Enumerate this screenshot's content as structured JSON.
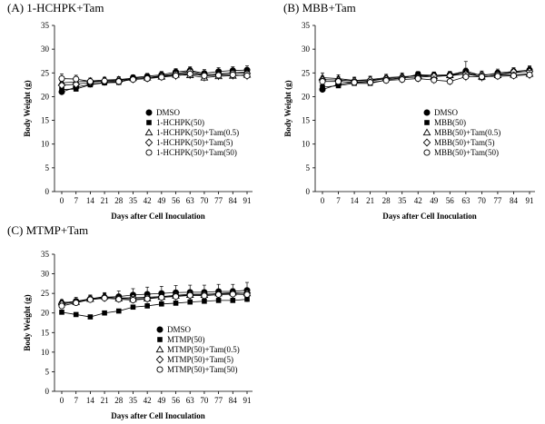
{
  "chart_data": [
    {
      "type": "line",
      "title": "(A) 1-HCHPK+Tam",
      "xlabel": "Days after Cell Inoculation",
      "ylabel": "Body Weight (g)",
      "ylim": [
        0,
        35
      ],
      "yticks": [
        "0",
        "5",
        "10",
        "15",
        "20",
        "25",
        "30",
        "35"
      ],
      "categories": [
        "0",
        "7",
        "14",
        "21",
        "28",
        "35",
        "42",
        "49",
        "56",
        "63",
        "70",
        "77",
        "84",
        "91"
      ],
      "legend": "bottom-right",
      "series": [
        {
          "name": "DMSO",
          "marker": "circle-filled",
          "values": [
            21.0,
            22.0,
            22.6,
            23.0,
            23.1,
            24.0,
            24.3,
            24.6,
            25.2,
            25.5,
            24.9,
            25.3,
            25.5,
            25.6
          ],
          "err": [
            0.4,
            0.5,
            0.5,
            0.5,
            0.6,
            0.6,
            0.6,
            0.7,
            0.7,
            0.8,
            0.8,
            0.8,
            0.8,
            0.9
          ]
        },
        {
          "name": "1-HCHPK(50)",
          "marker": "square-filled",
          "values": [
            21.5,
            21.6,
            22.5,
            22.9,
            23.0,
            23.8,
            24.0,
            24.3,
            24.8,
            24.9,
            24.5,
            24.8,
            25.0,
            25.2
          ],
          "err": [
            0.4,
            0.5,
            0.5,
            0.5,
            0.6,
            0.6,
            0.6,
            0.7,
            0.7,
            0.8,
            0.8,
            0.8,
            0.8,
            0.9
          ]
        },
        {
          "name": "1-HCHPK(50)+Tam(0.5)",
          "marker": "triangle-open",
          "values": [
            22.9,
            23.1,
            23.3,
            23.5,
            23.6,
            23.9,
            24.0,
            24.2,
            24.6,
            24.5,
            24.0,
            24.3,
            24.4,
            24.6
          ],
          "err": [
            0.6,
            0.6,
            0.6,
            0.6,
            0.6,
            0.7,
            0.7,
            0.7,
            0.8,
            0.8,
            0.8,
            0.8,
            0.8,
            0.8
          ]
        },
        {
          "name": "1-HCHPK(50)+Tam(5)",
          "marker": "diamond-open",
          "values": [
            22.4,
            22.6,
            23.0,
            23.3,
            23.5,
            23.8,
            24.0,
            24.4,
            24.8,
            25.3,
            24.6,
            24.7,
            25.0,
            24.9
          ],
          "err": [
            0.6,
            0.6,
            0.6,
            0.6,
            0.6,
            0.7,
            0.7,
            0.7,
            0.8,
            0.8,
            0.8,
            0.8,
            0.8,
            0.8
          ]
        },
        {
          "name": "1-HCHPK(50)+Tam(50)",
          "marker": "circle-open",
          "values": [
            23.8,
            23.7,
            23.2,
            23.3,
            23.2,
            23.6,
            23.8,
            24.1,
            24.4,
            24.8,
            24.4,
            24.5,
            24.6,
            24.4
          ],
          "err": [
            1.0,
            0.8,
            0.7,
            0.7,
            0.7,
            0.8,
            0.8,
            0.8,
            0.9,
            1.0,
            0.9,
            0.9,
            0.9,
            0.9
          ]
        }
      ]
    },
    {
      "type": "line",
      "title": "(B) MBB+Tam",
      "xlabel": "Days after Cell Inoculation",
      "ylabel": "Body Weight (g)",
      "ylim": [
        0,
        35
      ],
      "yticks": [
        "0",
        "5",
        "10",
        "15",
        "20",
        "25",
        "30",
        "35"
      ],
      "categories": [
        "0",
        "7",
        "14",
        "21",
        "28",
        "35",
        "42",
        "49",
        "56",
        "63",
        "70",
        "77",
        "84",
        "91"
      ],
      "legend": "bottom-right",
      "series": [
        {
          "name": "DMSO",
          "marker": "circle-filled",
          "values": [
            21.5,
            22.6,
            23.0,
            23.3,
            23.8,
            24.0,
            24.6,
            24.5,
            24.6,
            25.4,
            24.4,
            25.0,
            25.3,
            25.6
          ],
          "err": [
            0.5,
            0.5,
            0.5,
            0.5,
            0.6,
            0.6,
            0.6,
            0.7,
            0.7,
            2.0,
            0.8,
            0.8,
            0.8,
            0.9
          ]
        },
        {
          "name": "MBB(50)",
          "marker": "square-filled",
          "values": [
            22.0,
            22.3,
            22.8,
            22.8,
            23.5,
            23.9,
            24.7,
            24.2,
            24.5,
            25.2,
            24.0,
            24.6,
            25.0,
            25.4
          ],
          "err": [
            0.5,
            0.5,
            0.5,
            0.5,
            0.6,
            0.6,
            0.6,
            0.7,
            0.7,
            0.8,
            0.8,
            0.8,
            0.8,
            0.9
          ]
        },
        {
          "name": "MBB(50)+Tam(0.5)",
          "marker": "triangle-open",
          "values": [
            24.0,
            23.8,
            23.4,
            23.6,
            24.0,
            24.2,
            24.4,
            24.3,
            24.5,
            24.8,
            24.2,
            24.5,
            24.6,
            24.8
          ],
          "err": [
            1.0,
            0.8,
            0.7,
            0.7,
            0.7,
            0.8,
            0.8,
            0.8,
            0.8,
            0.9,
            0.8,
            0.8,
            0.8,
            0.9
          ]
        },
        {
          "name": "MBB(50)+Tam(5)",
          "marker": "diamond-open",
          "values": [
            23.6,
            23.5,
            23.3,
            23.5,
            23.8,
            24.0,
            24.1,
            24.3,
            24.4,
            24.8,
            24.6,
            24.7,
            25.2,
            25.3
          ],
          "err": [
            0.7,
            0.7,
            0.7,
            0.7,
            0.7,
            0.8,
            0.8,
            0.8,
            0.8,
            0.9,
            0.8,
            0.8,
            0.8,
            0.9
          ]
        },
        {
          "name": "MBB(50)+Tam(50)",
          "marker": "circle-open",
          "values": [
            23.2,
            23.2,
            23.0,
            23.0,
            23.4,
            23.6,
            23.8,
            23.5,
            23.2,
            24.2,
            24.2,
            24.3,
            24.4,
            24.6
          ],
          "err": [
            0.7,
            0.7,
            0.7,
            0.7,
            0.7,
            0.8,
            0.8,
            0.8,
            0.8,
            0.9,
            0.8,
            0.8,
            0.8,
            0.9
          ]
        }
      ]
    },
    {
      "type": "line",
      "title": "(C) MTMP+Tam",
      "xlabel": "Days after Cell Inoculation",
      "ylabel": "Body Weight (g)",
      "ylim": [
        0,
        35
      ],
      "yticks": [
        "0",
        "5",
        "10",
        "15",
        "20",
        "25",
        "30",
        "35"
      ],
      "categories": [
        "0",
        "7",
        "14",
        "21",
        "28",
        "35",
        "42",
        "49",
        "56",
        "63",
        "70",
        "77",
        "84",
        "91"
      ],
      "legend": "bottom-right",
      "series": [
        {
          "name": "DMSO",
          "marker": "circle-filled",
          "values": [
            22.5,
            23.0,
            23.6,
            24.0,
            24.2,
            24.6,
            24.8,
            25.0,
            25.2,
            25.3,
            25.3,
            25.5,
            25.5,
            25.8
          ],
          "err": [
            0.8,
            1.0,
            1.0,
            1.2,
            1.4,
            1.6,
            1.8,
            1.8,
            1.8,
            1.8,
            1.8,
            1.8,
            1.8,
            2.0
          ]
        },
        {
          "name": "MTMP(50)",
          "marker": "square-filled",
          "values": [
            20.2,
            19.6,
            19.0,
            20.0,
            20.5,
            21.5,
            21.8,
            22.3,
            22.5,
            22.8,
            23.0,
            23.2,
            23.2,
            23.5
          ],
          "err": [
            0.5,
            0.5,
            0.5,
            0.5,
            0.5,
            0.5,
            0.6,
            0.6,
            0.6,
            0.6,
            0.6,
            0.6,
            0.6,
            0.7
          ]
        },
        {
          "name": "MTMP(50)+Tam(0.5)",
          "marker": "triangle-open",
          "values": [
            22.7,
            22.8,
            23.6,
            24.2,
            23.7,
            23.6,
            23.7,
            24.1,
            24.4,
            24.6,
            24.6,
            25.0,
            25.2,
            25.0
          ],
          "err": [
            0.7,
            0.8,
            0.8,
            0.8,
            0.9,
            0.9,
            1.0,
            1.0,
            1.0,
            1.0,
            1.0,
            1.0,
            1.0,
            1.1
          ]
        },
        {
          "name": "MTMP(50)+Tam(5)",
          "marker": "diamond-open",
          "values": [
            22.3,
            22.8,
            23.6,
            24.0,
            23.8,
            23.9,
            24.0,
            24.2,
            24.5,
            24.8,
            24.8,
            24.9,
            25.0,
            25.1
          ],
          "err": [
            0.7,
            0.8,
            0.8,
            0.8,
            0.9,
            0.9,
            1.0,
            1.0,
            1.0,
            1.0,
            1.0,
            1.0,
            1.0,
            1.1
          ]
        },
        {
          "name": "MTMP(50)+Tam(50)",
          "marker": "circle-open",
          "values": [
            21.8,
            22.6,
            23.4,
            23.8,
            23.5,
            23.3,
            23.6,
            24.0,
            24.2,
            24.5,
            24.4,
            24.7,
            24.8,
            24.7
          ],
          "err": [
            0.7,
            0.8,
            0.8,
            0.8,
            0.9,
            0.9,
            1.0,
            1.0,
            1.0,
            1.0,
            1.0,
            1.0,
            1.0,
            1.1
          ]
        }
      ]
    }
  ]
}
